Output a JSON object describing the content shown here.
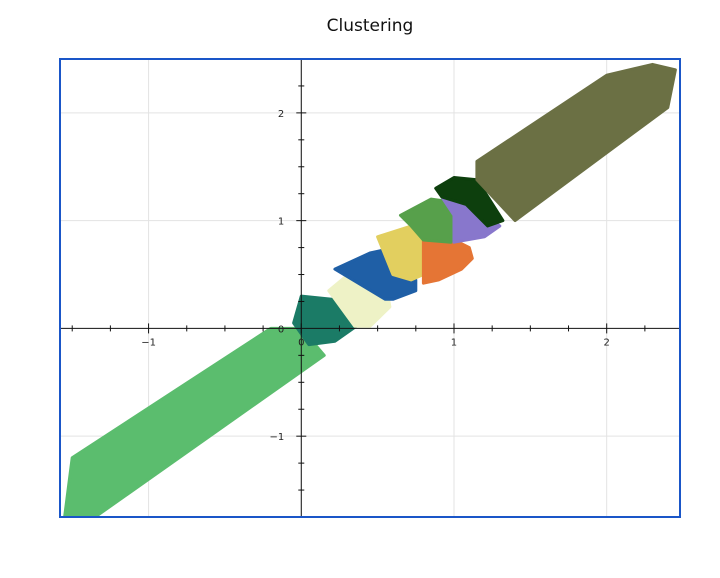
{
  "chart_data": {
    "type": "scatter",
    "title": "Clustering",
    "xlabel": "",
    "ylabel": "",
    "xlim": [
      -1.58,
      2.48
    ],
    "ylim": [
      -1.75,
      2.5
    ],
    "x_ticks": [
      -1,
      0,
      1,
      2
    ],
    "x_tick_labels": [
      "−1",
      "0",
      "1",
      "2"
    ],
    "y_ticks": [
      -1,
      1,
      2
    ],
    "y_tick_labels": [
      "−1",
      "1",
      "2"
    ],
    "origin_label": "0",
    "grid": true,
    "legend": "none",
    "clusters": [
      {
        "id": 1,
        "color": "#5bbd6e",
        "polygon": [
          [
            -1.55,
            -1.75
          ],
          [
            -1.5,
            -1.2
          ],
          [
            -0.2,
            0.0
          ],
          [
            0.0,
            0.0
          ],
          [
            0.15,
            -0.25
          ],
          [
            -1.35,
            -1.75
          ]
        ]
      },
      {
        "id": 2,
        "color": "#1b7b66",
        "polygon": [
          [
            -0.05,
            0.05
          ],
          [
            0.0,
            0.3
          ],
          [
            0.2,
            0.27
          ],
          [
            0.37,
            0.03
          ],
          [
            0.22,
            -0.12
          ],
          [
            0.05,
            -0.15
          ]
        ]
      },
      {
        "id": 3,
        "color": "#eef2c6",
        "polygon": [
          [
            0.18,
            0.35
          ],
          [
            0.35,
            0.55
          ],
          [
            0.45,
            0.6
          ],
          [
            0.55,
            0.45
          ],
          [
            0.58,
            0.2
          ],
          [
            0.45,
            0.02
          ],
          [
            0.35,
            0.02
          ]
        ]
      },
      {
        "id": 4,
        "color": "#1f5fa6",
        "polygon": [
          [
            0.22,
            0.55
          ],
          [
            0.45,
            0.7
          ],
          [
            0.55,
            0.73
          ],
          [
            0.75,
            0.45
          ],
          [
            0.75,
            0.35
          ],
          [
            0.6,
            0.27
          ],
          [
            0.55,
            0.27
          ]
        ]
      },
      {
        "id": 5,
        "color": "#e2cf5f",
        "polygon": [
          [
            0.5,
            0.85
          ],
          [
            0.72,
            0.95
          ],
          [
            0.8,
            0.9
          ],
          [
            0.8,
            0.5
          ],
          [
            0.72,
            0.45
          ],
          [
            0.6,
            0.5
          ]
        ]
      },
      {
        "id": 6,
        "color": "#e57535",
        "polygon": [
          [
            0.8,
            0.85
          ],
          [
            1.0,
            0.82
          ],
          [
            1.1,
            0.75
          ],
          [
            1.12,
            0.65
          ],
          [
            1.05,
            0.55
          ],
          [
            0.9,
            0.45
          ],
          [
            0.8,
            0.42
          ]
        ]
      },
      {
        "id": 7,
        "color": "#57a04b",
        "polygon": [
          [
            0.65,
            1.05
          ],
          [
            0.85,
            1.2
          ],
          [
            0.95,
            1.18
          ],
          [
            1.0,
            1.05
          ],
          [
            0.98,
            0.8
          ],
          [
            0.8,
            0.82
          ],
          [
            0.72,
            0.95
          ]
        ]
      },
      {
        "id": 8,
        "color": "#8877cc",
        "polygon": [
          [
            0.92,
            1.22
          ],
          [
            1.1,
            1.15
          ],
          [
            1.3,
            0.95
          ],
          [
            1.2,
            0.85
          ],
          [
            1.0,
            0.8
          ],
          [
            1.0,
            1.05
          ]
        ]
      },
      {
        "id": 9,
        "color": "#0d3f0d",
        "polygon": [
          [
            0.88,
            1.3
          ],
          [
            1.0,
            1.4
          ],
          [
            1.15,
            1.38
          ],
          [
            1.32,
            1.0
          ],
          [
            1.22,
            0.95
          ],
          [
            1.08,
            1.15
          ],
          [
            0.92,
            1.22
          ]
        ]
      },
      {
        "id": 10,
        "color": "#6b7044",
        "polygon": [
          [
            1.15,
            1.55
          ],
          [
            2.0,
            2.35
          ],
          [
            2.3,
            2.45
          ],
          [
            2.45,
            2.4
          ],
          [
            2.4,
            2.05
          ],
          [
            1.4,
            1.0
          ],
          [
            1.15,
            1.38
          ]
        ]
      }
    ]
  }
}
